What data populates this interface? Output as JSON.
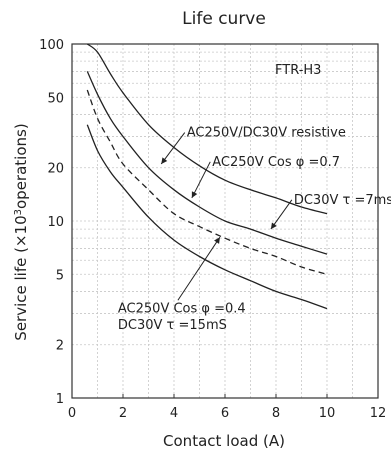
{
  "chart_data": {
    "type": "line",
    "title": "Life curve",
    "xlabel": "Contact load (A)",
    "ylabel_main": "Service life (×10",
    "ylabel_sup": "3",
    "ylabel_tail": "operations)",
    "xlim": [
      0,
      12
    ],
    "ylim": [
      1,
      100
    ],
    "yscale": "log",
    "grid": true,
    "x_ticks": [
      "0",
      "2",
      "4",
      "6",
      "8",
      "10",
      "12"
    ],
    "y_ticks": [
      "1",
      "2",
      "5",
      "10",
      "20",
      "50",
      "100"
    ],
    "model_label": "FTR-H3",
    "series": [
      {
        "name": "AC250V/DC30V resistive",
        "style": "solid",
        "x": [
          0.6,
          1.0,
          1.5,
          2,
          3,
          4,
          5,
          6,
          7,
          8,
          9,
          10
        ],
        "y": [
          100,
          90,
          68,
          53,
          35,
          26,
          20.5,
          17,
          15,
          13.5,
          12,
          11
        ]
      },
      {
        "name": "AC250V Cos φ =0.7",
        "style": "solid",
        "x": [
          0.6,
          1.0,
          1.5,
          2,
          3,
          4,
          5,
          6,
          7,
          8,
          9,
          10
        ],
        "y": [
          70,
          52,
          38,
          30,
          20,
          15,
          12,
          10,
          9,
          8,
          7.2,
          6.5
        ]
      },
      {
        "name": "DC30V τ =7ms",
        "style": "dashed",
        "x": [
          0.6,
          1.0,
          1.5,
          2,
          3,
          4,
          5,
          6,
          7,
          8,
          9,
          10
        ],
        "y": [
          55,
          38,
          28,
          21,
          15,
          11,
          9.3,
          8,
          7,
          6.3,
          5.5,
          5
        ]
      },
      {
        "name": "AC250V Cos φ =0.4\nDC30V τ =15mS",
        "style": "solid",
        "x": [
          0.6,
          1.0,
          1.5,
          2,
          3,
          4,
          5,
          6,
          7,
          8,
          9,
          10
        ],
        "y": [
          35,
          25,
          19,
          15.5,
          10.5,
          7.8,
          6.3,
          5.3,
          4.6,
          4,
          3.6,
          3.2
        ]
      }
    ],
    "annotations": [
      {
        "text": "AC250V/DC30V  resistive",
        "x": 4.5,
        "y": 30,
        "arrow_to": [
          3.5,
          21
        ]
      },
      {
        "text": "AC250V Cos φ =0.7",
        "x": 5.5,
        "y": 20.5,
        "arrow_to": [
          4.7,
          13.5
        ]
      },
      {
        "text": "DC30V  τ =7ms",
        "x": 8.7,
        "y": 12.5,
        "arrow_to": [
          7.8,
          9
        ]
      },
      {
        "text": "AC250V Cos φ =0.4",
        "x": 1.8,
        "y": 3.05,
        "arrow_to": [
          5.8,
          8.1
        ]
      },
      {
        "text": "DC30V  τ =15mS",
        "x": 1.8,
        "y": 2.45,
        "arrow_to": null
      }
    ]
  }
}
